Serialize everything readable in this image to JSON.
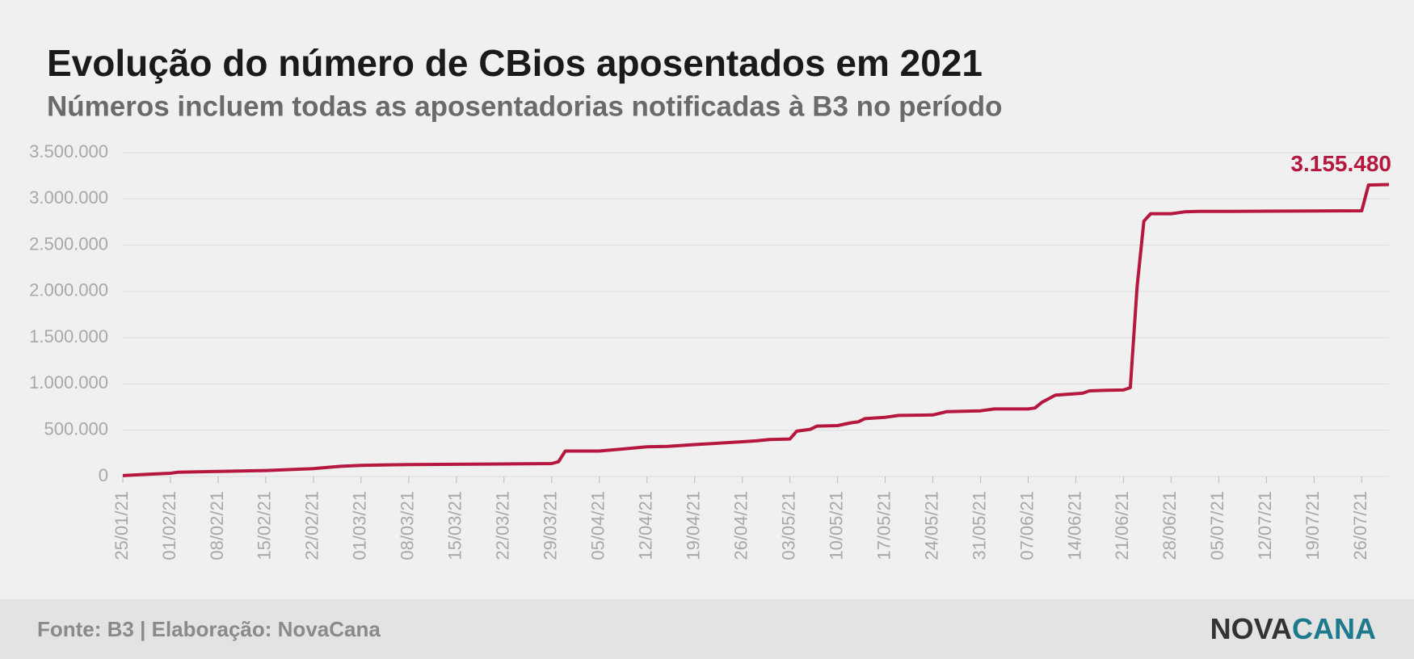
{
  "chart_data": {
    "type": "line",
    "title": "Evolução do número de CBios aposentados em 2021",
    "subtitle": "Números incluem todas as aposentadorias notificadas à B3 no período",
    "source": "Fonte: B3 | Elaboração: NovaCana",
    "logo": [
      "NOVA",
      "CANA"
    ],
    "x": [
      "2021-01-25",
      "2021-01-29",
      "2021-02-01",
      "2021-02-02",
      "2021-02-08",
      "2021-02-15",
      "2021-02-22",
      "2021-02-26",
      "2021-03-01",
      "2021-03-04",
      "2021-03-08",
      "2021-03-15",
      "2021-03-22",
      "2021-03-29",
      "2021-03-30",
      "2021-03-31",
      "2021-04-05",
      "2021-04-12",
      "2021-04-15",
      "2021-04-19",
      "2021-04-26",
      "2021-04-28",
      "2021-04-30",
      "2021-05-03",
      "2021-05-04",
      "2021-05-06",
      "2021-05-07",
      "2021-05-10",
      "2021-05-12",
      "2021-05-13",
      "2021-05-14",
      "2021-05-17",
      "2021-05-19",
      "2021-05-24",
      "2021-05-26",
      "2021-05-31",
      "2021-06-02",
      "2021-06-07",
      "2021-06-08",
      "2021-06-09",
      "2021-06-11",
      "2021-06-14",
      "2021-06-15",
      "2021-06-16",
      "2021-06-18",
      "2021-06-21",
      "2021-06-22",
      "2021-06-23",
      "2021-06-24",
      "2021-06-25",
      "2021-06-28",
      "2021-06-30",
      "2021-07-02",
      "2021-07-05",
      "2021-07-12",
      "2021-07-19",
      "2021-07-26",
      "2021-07-27",
      "2021-07-30"
    ],
    "series": [
      {
        "name": "CBios aposentados",
        "color": "#b5173f",
        "values": [
          10000,
          25000,
          35000,
          45000,
          55000,
          65000,
          85000,
          110000,
          120000,
          125000,
          128000,
          132000,
          135000,
          140000,
          160000,
          275000,
          275000,
          320000,
          325000,
          345000,
          375000,
          385000,
          400000,
          405000,
          490000,
          510000,
          545000,
          550000,
          580000,
          590000,
          625000,
          640000,
          660000,
          665000,
          700000,
          710000,
          730000,
          730000,
          740000,
          800000,
          880000,
          895000,
          900000,
          925000,
          930000,
          935000,
          960000,
          2050000,
          2760000,
          2840000,
          2840000,
          2860000,
          2865000,
          2865000,
          2867000,
          2870000,
          2872000,
          3150000,
          3155480
        ],
        "value_labels": [
          null,
          null,
          null,
          null,
          null,
          null,
          null,
          null,
          null,
          null,
          null,
          null,
          null,
          null,
          null,
          null,
          null,
          null,
          null,
          null,
          null,
          null,
          null,
          null,
          null,
          null,
          null,
          null,
          null,
          null,
          null,
          null,
          null,
          null,
          null,
          null,
          null,
          null,
          null,
          null,
          null,
          null,
          null,
          null,
          null,
          null,
          null,
          null,
          null,
          null,
          null,
          null,
          null,
          null,
          null,
          null,
          null,
          null,
          "3.155.480"
        ]
      }
    ],
    "xlim": [
      "2021-01-25",
      "2021-07-30"
    ],
    "xticks": [
      {
        "value": "2021-01-25",
        "label": "25/01/21"
      },
      {
        "value": "2021-02-01",
        "label": "01/02/21"
      },
      {
        "value": "2021-02-08",
        "label": "08/02/21"
      },
      {
        "value": "2021-02-15",
        "label": "15/02/21"
      },
      {
        "value": "2021-02-22",
        "label": "22/02/21"
      },
      {
        "value": "2021-03-01",
        "label": "01/03/21"
      },
      {
        "value": "2021-03-08",
        "label": "08/03/21"
      },
      {
        "value": "2021-03-15",
        "label": "15/03/21"
      },
      {
        "value": "2021-03-22",
        "label": "22/03/21"
      },
      {
        "value": "2021-03-29",
        "label": "29/03/21"
      },
      {
        "value": "2021-04-05",
        "label": "05/04/21"
      },
      {
        "value": "2021-04-12",
        "label": "12/04/21"
      },
      {
        "value": "2021-04-19",
        "label": "19/04/21"
      },
      {
        "value": "2021-04-26",
        "label": "26/04/21"
      },
      {
        "value": "2021-05-03",
        "label": "03/05/21"
      },
      {
        "value": "2021-05-10",
        "label": "10/05/21"
      },
      {
        "value": "2021-05-17",
        "label": "17/05/21"
      },
      {
        "value": "2021-05-24",
        "label": "24/05/21"
      },
      {
        "value": "2021-05-31",
        "label": "31/05/21"
      },
      {
        "value": "2021-06-07",
        "label": "07/06/21"
      },
      {
        "value": "2021-06-14",
        "label": "14/06/21"
      },
      {
        "value": "2021-06-21",
        "label": "21/06/21"
      },
      {
        "value": "2021-06-28",
        "label": "28/06/21"
      },
      {
        "value": "2021-07-05",
        "label": "05/07/21"
      },
      {
        "value": "2021-07-12",
        "label": "12/07/21"
      },
      {
        "value": "2021-07-19",
        "label": "19/07/21"
      },
      {
        "value": "2021-07-26",
        "label": "26/07/21"
      }
    ],
    "ylim": [
      0,
      3500000
    ],
    "yticks": [
      0,
      {
        "value": 500000,
        "label": "500.000"
      },
      {
        "value": 1000000,
        "label": "1.000.000"
      },
      {
        "value": 1500000,
        "label": "1.500.000"
      },
      {
        "value": 2000000,
        "label": "2.000.000"
      },
      {
        "value": 2500000,
        "label": "2.500.000"
      },
      {
        "value": 3000000,
        "label": "3.000.000"
      },
      {
        "value": 3500000,
        "label": "3.500.000"
      }
    ],
    "grid": true
  }
}
